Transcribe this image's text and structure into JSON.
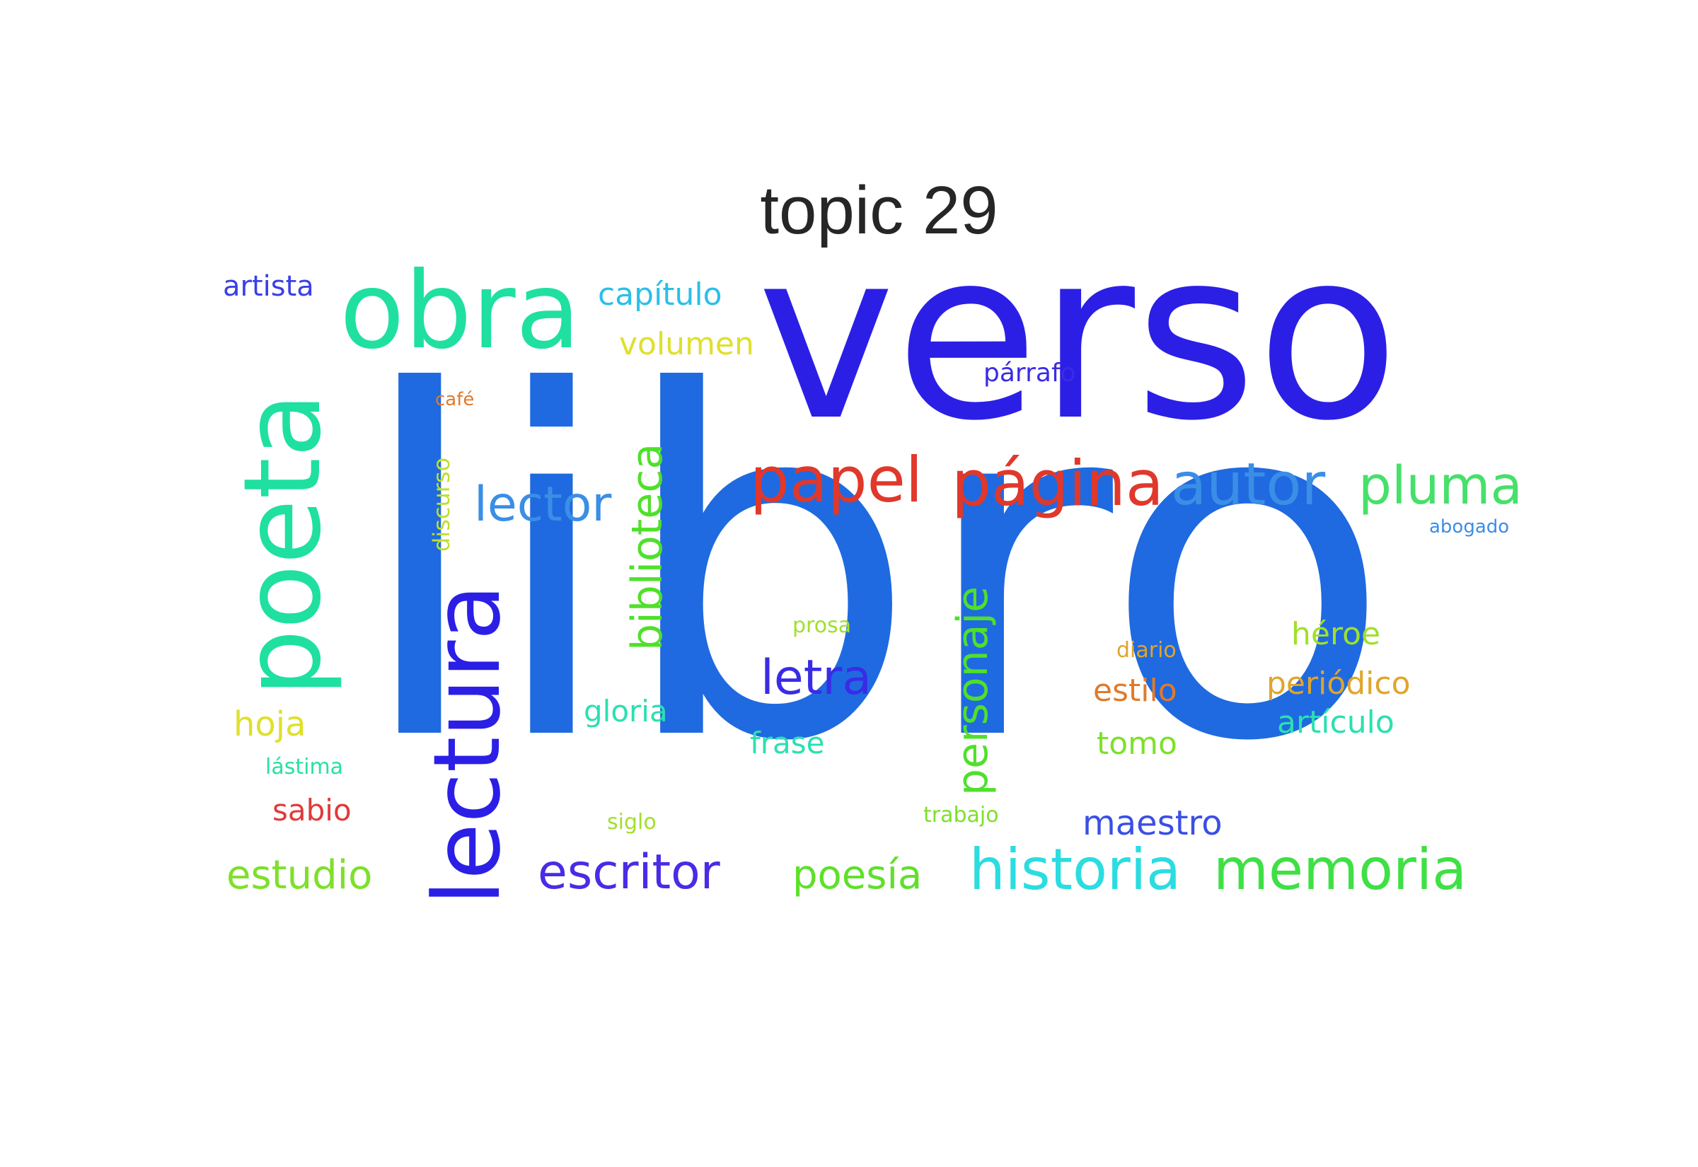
{
  "title": "topic 29",
  "words": [
    {
      "text": "libro",
      "color": "#1f6ae0",
      "size": 670,
      "rotated": false
    },
    {
      "text": "verso",
      "color": "#2b1fe6",
      "size": 330,
      "rotated": false
    },
    {
      "text": "poeta",
      "color": "#1fe0a0",
      "size": 150,
      "rotated": true
    },
    {
      "text": "obra",
      "color": "#1fe0a0",
      "size": 150,
      "rotated": false
    },
    {
      "text": "lectura",
      "color": "#2b1fe6",
      "size": 130,
      "rotated": true
    },
    {
      "text": "papel",
      "color": "#e0382b",
      "size": 88,
      "rotated": false
    },
    {
      "text": "página",
      "color": "#e0382b",
      "size": 88,
      "rotated": false
    },
    {
      "text": "autor",
      "color": "#3a8ee6",
      "size": 82,
      "rotated": false
    },
    {
      "text": "pluma",
      "color": "#46e06a",
      "size": 74,
      "rotated": false
    },
    {
      "text": "historia",
      "color": "#2bdce0",
      "size": 80,
      "rotated": false
    },
    {
      "text": "memoria",
      "color": "#3fe045",
      "size": 80,
      "rotated": false
    },
    {
      "text": "escritor",
      "color": "#4a2be6",
      "size": 68,
      "rotated": false
    },
    {
      "text": "lector",
      "color": "#3a8ee6",
      "size": 68,
      "rotated": false
    },
    {
      "text": "biblioteca",
      "color": "#4fe02b",
      "size": 60,
      "rotated": true
    },
    {
      "text": "personaje",
      "color": "#4fe02b",
      "size": 60,
      "rotated": true
    },
    {
      "text": "letra",
      "color": "#3a2be6",
      "size": 68,
      "rotated": false
    },
    {
      "text": "estudio",
      "color": "#7ee02b",
      "size": 56,
      "rotated": false
    },
    {
      "text": "poesía",
      "color": "#5ee02b",
      "size": 56,
      "rotated": false
    },
    {
      "text": "maestro",
      "color": "#3a4fe6",
      "size": 48,
      "rotated": false
    },
    {
      "text": "capítulo",
      "color": "#2bbfe6",
      "size": 44,
      "rotated": false
    },
    {
      "text": "volumen",
      "color": "#dfe02b",
      "size": 44,
      "rotated": false
    },
    {
      "text": "artista",
      "color": "#3a3fe6",
      "size": 40,
      "rotated": false
    },
    {
      "text": "hoja",
      "color": "#dfe02b",
      "size": 48,
      "rotated": false
    },
    {
      "text": "gloria",
      "color": "#2be0b0",
      "size": 42,
      "rotated": false
    },
    {
      "text": "frase",
      "color": "#2be0b0",
      "size": 42,
      "rotated": false
    },
    {
      "text": "estilo",
      "color": "#e07a2b",
      "size": 44,
      "rotated": false
    },
    {
      "text": "tomo",
      "color": "#7ee02b",
      "size": 44,
      "rotated": false
    },
    {
      "text": "héroe",
      "color": "#a0e02b",
      "size": 44,
      "rotated": false
    },
    {
      "text": "periódico",
      "color": "#e0a52b",
      "size": 44,
      "rotated": false
    },
    {
      "text": "artículo",
      "color": "#2be0b0",
      "size": 44,
      "rotated": false
    },
    {
      "text": "sabio",
      "color": "#e03a3a",
      "size": 42,
      "rotated": false
    },
    {
      "text": "párrafo",
      "color": "#3a2be6",
      "size": 36,
      "rotated": false
    },
    {
      "text": "discurso",
      "color": "#bfe02b",
      "size": 32,
      "rotated": true
    },
    {
      "text": "lástima",
      "color": "#2be0a0",
      "size": 30,
      "rotated": false
    },
    {
      "text": "prosa",
      "color": "#a0e02b",
      "size": 30,
      "rotated": false
    },
    {
      "text": "siglo",
      "color": "#a0e02b",
      "size": 30,
      "rotated": false
    },
    {
      "text": "trabajo",
      "color": "#7ee02b",
      "size": 30,
      "rotated": false
    },
    {
      "text": "diario",
      "color": "#e0a52b",
      "size": 30,
      "rotated": false
    },
    {
      "text": "café",
      "color": "#e07a2b",
      "size": 26,
      "rotated": false
    },
    {
      "text": "abogado",
      "color": "#3a8ee6",
      "size": 26,
      "rotated": false
    }
  ]
}
